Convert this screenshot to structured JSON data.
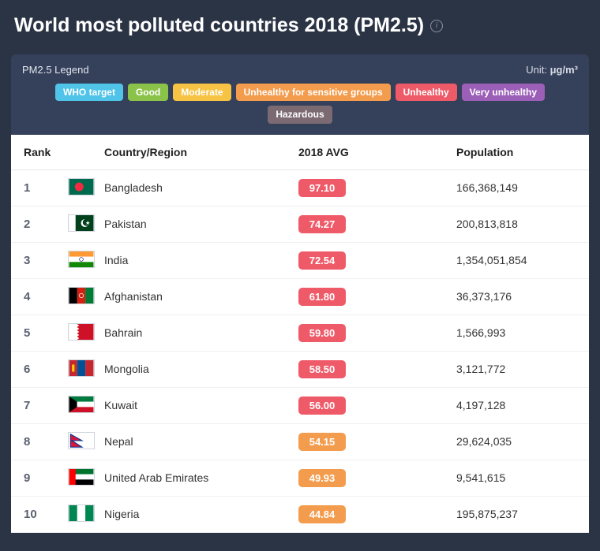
{
  "header": {
    "title": "World most polluted countries 2018 (PM2.5)"
  },
  "legend": {
    "title": "PM2.5 Legend",
    "unit_label": "Unit:",
    "unit_value": "μg/m³",
    "items": [
      {
        "label": "WHO target",
        "color": "#4fc3e8"
      },
      {
        "label": "Good",
        "color": "#8bc34a"
      },
      {
        "label": "Moderate",
        "color": "#f6c344"
      },
      {
        "label": "Unhealthy for sensitive groups",
        "color": "#f39c4d"
      },
      {
        "label": "Unhealthy",
        "color": "#ef5a68"
      },
      {
        "label": "Very unhealthy",
        "color": "#9b5fb8"
      },
      {
        "label": "Hazardous",
        "color": "#7b6a72"
      }
    ]
  },
  "table": {
    "columns": {
      "rank": "Rank",
      "country": "Country/Region",
      "avg": "2018 AVG",
      "pop": "Population"
    },
    "rows": [
      {
        "rank": "1",
        "country": "Bangladesh",
        "avg": "97.10",
        "avg_color": "#ef5a68",
        "pop": "166,368,149",
        "flag": "bd"
      },
      {
        "rank": "2",
        "country": "Pakistan",
        "avg": "74.27",
        "avg_color": "#ef5a68",
        "pop": "200,813,818",
        "flag": "pk"
      },
      {
        "rank": "3",
        "country": "India",
        "avg": "72.54",
        "avg_color": "#ef5a68",
        "pop": "1,354,051,854",
        "flag": "in"
      },
      {
        "rank": "4",
        "country": "Afghanistan",
        "avg": "61.80",
        "avg_color": "#ef5a68",
        "pop": "36,373,176",
        "flag": "af"
      },
      {
        "rank": "5",
        "country": "Bahrain",
        "avg": "59.80",
        "avg_color": "#ef5a68",
        "pop": "1,566,993",
        "flag": "bh"
      },
      {
        "rank": "6",
        "country": "Mongolia",
        "avg": "58.50",
        "avg_color": "#ef5a68",
        "pop": "3,121,772",
        "flag": "mn"
      },
      {
        "rank": "7",
        "country": "Kuwait",
        "avg": "56.00",
        "avg_color": "#ef5a68",
        "pop": "4,197,128",
        "flag": "kw"
      },
      {
        "rank": "8",
        "country": "Nepal",
        "avg": "54.15",
        "avg_color": "#f39c4d",
        "pop": "29,624,035",
        "flag": "np"
      },
      {
        "rank": "9",
        "country": "United Arab Emirates",
        "avg": "49.93",
        "avg_color": "#f39c4d",
        "pop": "9,541,615",
        "flag": "ae"
      },
      {
        "rank": "10",
        "country": "Nigeria",
        "avg": "44.84",
        "avg_color": "#f39c4d",
        "pop": "195,875,237",
        "flag": "ng"
      }
    ]
  },
  "styling": {
    "page_bg": "#2b3445",
    "panel_bg": "#35405a",
    "table_bg": "#ffffff",
    "row_border": "#eef0f3"
  }
}
